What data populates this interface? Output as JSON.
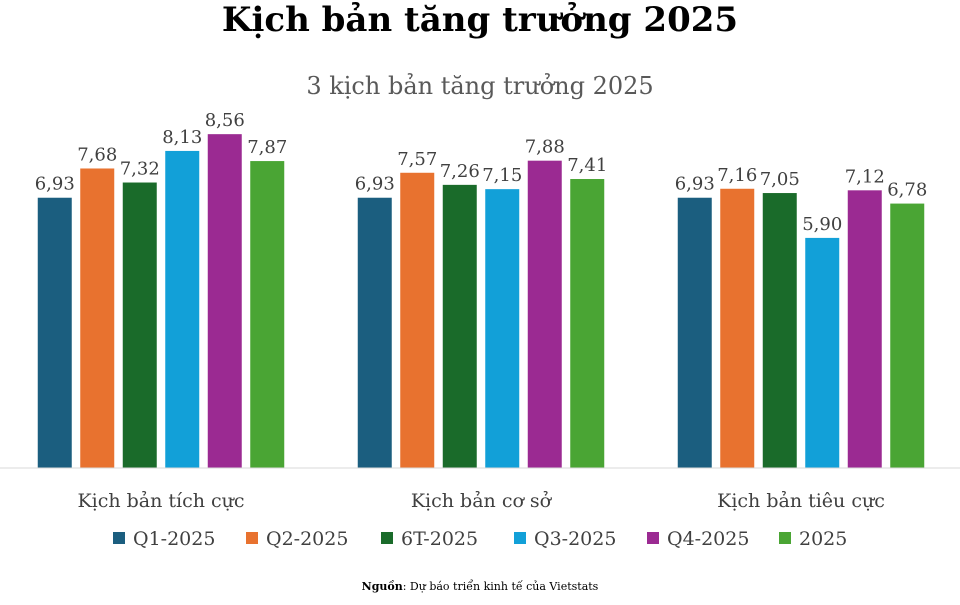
{
  "page_title": "Kịch bản tăng trưởng 2025",
  "source": {
    "label": "Nguồn",
    "text": ": Dự báo triển kinh tế của Vietstats"
  },
  "chart_data": {
    "type": "bar",
    "title": "3 kịch bản tăng trưởng 2025",
    "categories": [
      "Kịch bản tích cực",
      "Kịch bản cơ sở",
      "Kịch bản tiêu cực"
    ],
    "series": [
      {
        "name": "Q1-2025",
        "color": "#1b5e7f",
        "values": [
          6.93,
          6.93,
          6.93
        ],
        "labels": [
          "6,93",
          "6,93",
          "6,93"
        ]
      },
      {
        "name": "Q2-2025",
        "color": "#e8722f",
        "values": [
          7.68,
          7.57,
          7.16
        ],
        "labels": [
          "7,68",
          "7,57",
          "7,16"
        ]
      },
      {
        "name": "6T-2025",
        "color": "#1a6b2a",
        "values": [
          7.32,
          7.26,
          7.05
        ],
        "labels": [
          "7,32",
          "7,26",
          "7,05"
        ]
      },
      {
        "name": "Q3-2025",
        "color": "#12a0d8",
        "values": [
          8.13,
          7.15,
          5.9
        ],
        "labels": [
          "8,13",
          "7,15",
          "5,90"
        ]
      },
      {
        "name": "Q4-2025",
        "color": "#9b2a92",
        "values": [
          8.56,
          7.88,
          7.12
        ],
        "labels": [
          "8,56",
          "7,88",
          "7,12"
        ]
      },
      {
        "name": "2025",
        "color": "#4aa534",
        "values": [
          7.87,
          7.41,
          6.78
        ],
        "labels": [
          "7,87",
          "7,41",
          "6,78"
        ]
      }
    ],
    "ylim": [
      0,
      10.7
    ],
    "grid": false,
    "legend_position": "bottom"
  }
}
